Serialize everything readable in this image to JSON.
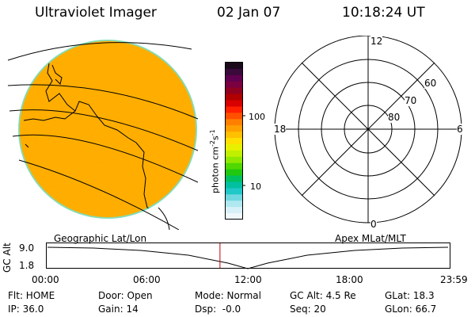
{
  "header": {
    "instrument": "Ultraviolet Imager",
    "date": "02 Jan 07",
    "time": "10:18:24 UT"
  },
  "colorbar": {
    "unit_label": "photon cm",
    "unit_sup1": "-2",
    "unit_mid": "s",
    "unit_sup2": "-1",
    "ticks": [
      "100",
      "10"
    ],
    "colors": [
      "#1a0a1a",
      "#3a0a3a",
      "#600050",
      "#7a0040",
      "#900020",
      "#b00000",
      "#d80000",
      "#ff2000",
      "#ff5000",
      "#ff8000",
      "#ffa000",
      "#ffc000",
      "#ffe000",
      "#e8f000",
      "#c0f000",
      "#90e800",
      "#50d800",
      "#20c810",
      "#00c060",
      "#00c0a0",
      "#20c8c8",
      "#70d8e0",
      "#b0e8f0",
      "#d8f0f8",
      "#f0f8fc"
    ]
  },
  "polar": {
    "mlt_labels": [
      "12",
      "18",
      "6",
      "0"
    ],
    "lat_labels": [
      "60",
      "70",
      "80"
    ]
  },
  "timeline": {
    "left_label": "Geographic Lat/Lon",
    "right_label": "Apex MLat/MLT",
    "axis_label": "GC Alt",
    "y_ticks": [
      "9.0",
      "1.8"
    ],
    "x_ticks": [
      "00:00",
      "06:00",
      "12:00",
      "18:00",
      "23:59"
    ],
    "current_fraction": 0.43
  },
  "info": {
    "flt": "Flt: HOME",
    "door": "Door: Open",
    "mode": "Mode: Normal",
    "gc_alt": "GC Alt: 4.5 Re",
    "glat": "GLat: 18.3",
    "ip": "IP: 36.0",
    "gain": "Gain: 14",
    "dsp": "Dsp:  -0.0",
    "seq": "Seq: 20",
    "glon": "GLon: 66.7"
  }
}
